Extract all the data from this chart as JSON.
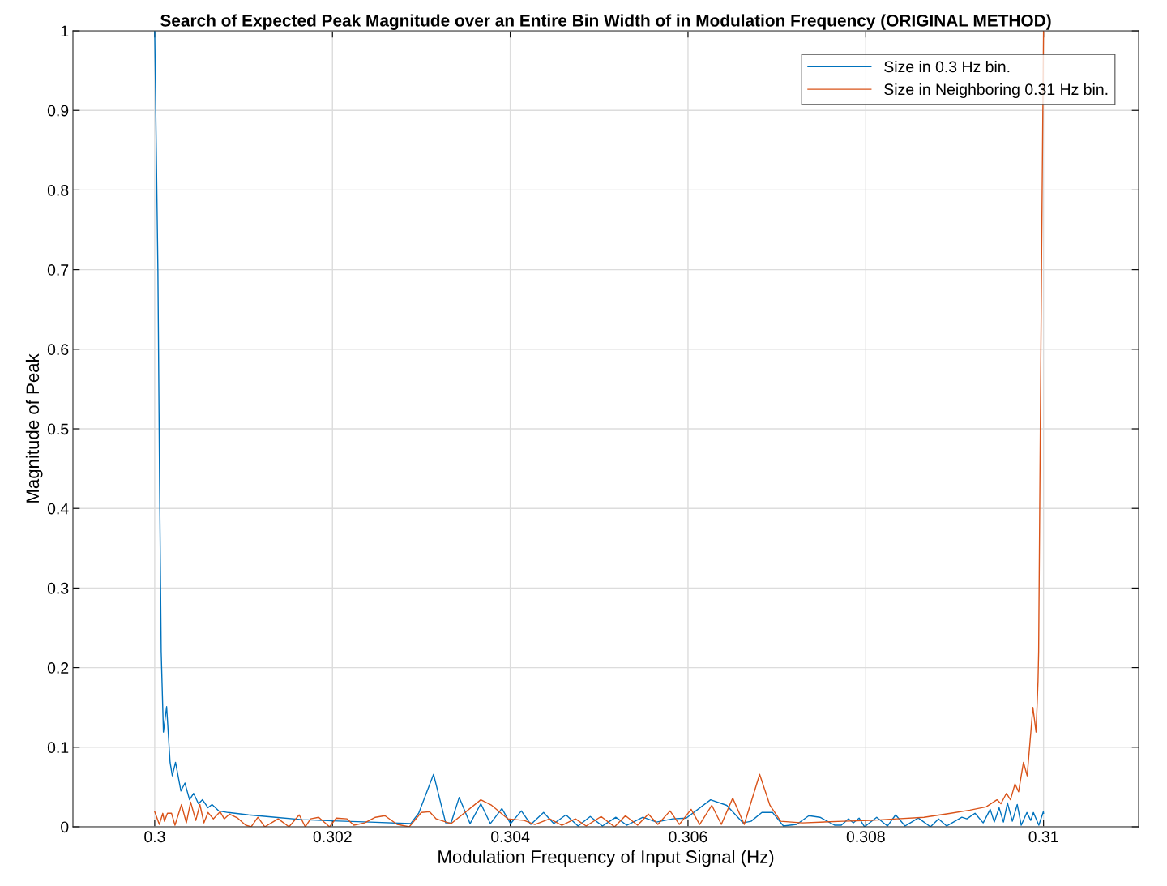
{
  "chart_data": {
    "type": "line",
    "title": "Search of Expected Peak Magnitude over an Entire Bin Width of in Modulation Frequency (ORIGINAL METHOD)",
    "xlabel": "Modulation Frequency of Input Signal (Hz)",
    "ylabel": "Magnitude of Peak",
    "xlim": [
      0.29908,
      0.31107
    ],
    "ylim": [
      0,
      1
    ],
    "xticks": [
      0.3,
      0.302,
      0.304,
      0.306,
      0.308,
      0.31
    ],
    "yticks": [
      0,
      0.1,
      0.2,
      0.3,
      0.4,
      0.5,
      0.6,
      0.7,
      0.8,
      0.9,
      1
    ],
    "grid": true,
    "legend": "top right",
    "marker": "none",
    "line_style": "solid",
    "series": [
      {
        "name": "Size in 0.3 Hz bin.",
        "color": "#0072bd",
        "x": [
          0.3,
          0.300036,
          0.300055,
          0.300073,
          0.300082,
          0.300098,
          0.300134,
          0.300173,
          0.300198,
          0.300234,
          0.300295,
          0.30034,
          0.300392,
          0.300438,
          0.300492,
          0.300538,
          0.300599,
          0.300645,
          0.30072,
          0.300827,
          0.301055,
          0.301359,
          0.30166,
          0.301997,
          0.302423,
          0.302879,
          0.30297,
          0.303137,
          0.303274,
          0.303335,
          0.303426,
          0.303548,
          0.303669,
          0.303776,
          0.303906,
          0.304004,
          0.304125,
          0.304232,
          0.304375,
          0.30449,
          0.304627,
          0.304763,
          0.3049,
          0.305037,
          0.305189,
          0.305311,
          0.305493,
          0.305645,
          0.305828,
          0.30598,
          0.306254,
          0.306436,
          0.306618,
          0.30671,
          0.306831,
          0.306952,
          0.307074,
          0.307223,
          0.30736,
          0.307485,
          0.307652,
          0.307725,
          0.307804,
          0.307861,
          0.307925,
          0.307986,
          0.308123,
          0.308244,
          0.308336,
          0.308442,
          0.308591,
          0.308728,
          0.308819,
          0.30891,
          0.309081,
          0.309138,
          0.309229,
          0.309321,
          0.3094,
          0.309446,
          0.3095,
          0.309549,
          0.309594,
          0.309649,
          0.309704,
          0.309749,
          0.309813,
          0.309856,
          0.309886,
          0.309947,
          0.309998,
          0.31
        ],
        "values": [
          1.0,
          0.7,
          0.43,
          0.22,
          0.183,
          0.119,
          0.151,
          0.081,
          0.064,
          0.081,
          0.045,
          0.055,
          0.034,
          0.042,
          0.029,
          0.034,
          0.024,
          0.028,
          0.02,
          0.018,
          0.015,
          0.012,
          0.009,
          0.0075,
          0.006,
          0.004,
          0.017,
          0.066,
          0.005,
          0.005,
          0.037,
          0.004,
          0.029,
          0.004,
          0.023,
          0.004,
          0.02,
          0.003,
          0.018,
          0.004,
          0.015,
          0.001,
          0.013,
          0.001,
          0.012,
          0.002,
          0.012,
          0.006,
          0.01,
          0.011,
          0.034,
          0.027,
          0.005,
          0.007,
          0.018,
          0.018,
          0.001,
          0.003,
          0.014,
          0.012,
          0.002,
          0.002,
          0.01,
          0.005,
          0.011,
          0.0,
          0.012,
          0.001,
          0.015,
          0.001,
          0.011,
          0.0,
          0.01,
          0.001,
          0.012,
          0.01,
          0.017,
          0.005,
          0.022,
          0.006,
          0.024,
          0.006,
          0.03,
          0.007,
          0.028,
          0.002,
          0.018,
          0.008,
          0.018,
          0.002,
          0.019,
          0.017
        ]
      },
      {
        "name": "Size in Neighboring 0.31 Hz bin.",
        "color": "#d95319",
        "x": [
          0.3,
          0.300052,
          0.300091,
          0.300109,
          0.300143,
          0.300189,
          0.300228,
          0.300301,
          0.300356,
          0.300404,
          0.300462,
          0.300508,
          0.300554,
          0.300599,
          0.300659,
          0.300736,
          0.300782,
          0.300842,
          0.300933,
          0.301024,
          0.301085,
          0.301161,
          0.301238,
          0.301389,
          0.301511,
          0.301626,
          0.301694,
          0.301754,
          0.301845,
          0.301967,
          0.302043,
          0.302164,
          0.302241,
          0.302362,
          0.302483,
          0.30259,
          0.302727,
          0.302864,
          0.303,
          0.303092,
          0.303167,
          0.303335,
          0.303669,
          0.303791,
          0.303974,
          0.304156,
          0.304277,
          0.304444,
          0.304581,
          0.304733,
          0.304854,
          0.305022,
          0.305174,
          0.305296,
          0.305433,
          0.305554,
          0.305661,
          0.305798,
          0.305903,
          0.306035,
          0.306131,
          0.306268,
          0.306375,
          0.306503,
          0.306633,
          0.306806,
          0.306922,
          0.307043,
          0.307287,
          0.307743,
          0.308044,
          0.308351,
          0.308655,
          0.308956,
          0.309172,
          0.309354,
          0.309476,
          0.309521,
          0.309582,
          0.309628,
          0.309679,
          0.309719,
          0.309774,
          0.309816,
          0.30988,
          0.309916,
          0.309938,
          0.309945,
          0.309959,
          0.309977,
          0.31
        ],
        "values": [
          0.019,
          0.003,
          0.017,
          0.007,
          0.017,
          0.017,
          0.002,
          0.028,
          0.005,
          0.031,
          0.008,
          0.028,
          0.005,
          0.018,
          0.01,
          0.019,
          0.01,
          0.016,
          0.011,
          0.002,
          0.0,
          0.012,
          0.0,
          0.01,
          0.0,
          0.015,
          0.0,
          0.01,
          0.012,
          0.0,
          0.011,
          0.01,
          0.002,
          0.005,
          0.012,
          0.014,
          0.003,
          0.0,
          0.018,
          0.019,
          0.01,
          0.004,
          0.034,
          0.027,
          0.01,
          0.008,
          0.003,
          0.01,
          0.002,
          0.01,
          0.001,
          0.013,
          0.0,
          0.014,
          0.002,
          0.016,
          0.003,
          0.02,
          0.003,
          0.022,
          0.003,
          0.027,
          0.003,
          0.036,
          0.003,
          0.066,
          0.027,
          0.007,
          0.005,
          0.007,
          0.008,
          0.01,
          0.012,
          0.017,
          0.021,
          0.025,
          0.034,
          0.029,
          0.042,
          0.034,
          0.054,
          0.044,
          0.081,
          0.064,
          0.15,
          0.119,
          0.183,
          0.22,
          0.43,
          0.7,
          1.0
        ]
      }
    ]
  }
}
